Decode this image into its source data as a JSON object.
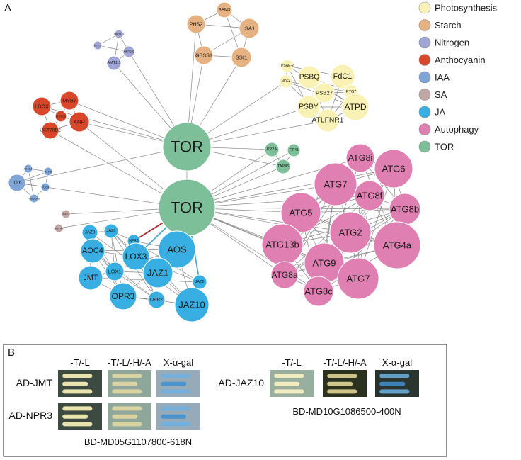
{
  "panel_a": {
    "label": "A",
    "legend": [
      {
        "key": "photosynthesis",
        "label": "Photosynthesis",
        "color": "#f9f2b4"
      },
      {
        "key": "starch",
        "label": "Starch",
        "color": "#e6b282"
      },
      {
        "key": "nitrogen",
        "label": "Nitrogen",
        "color": "#9fa6d6"
      },
      {
        "key": "anthocyanin",
        "label": "Anthocyanin",
        "color": "#d8472a"
      },
      {
        "key": "iaa",
        "label": "IAA",
        "color": "#7fa4d8"
      },
      {
        "key": "sa",
        "label": "SA",
        "color": "#c2a6a6"
      },
      {
        "key": "ja",
        "label": "JA",
        "color": "#38aee2"
      },
      {
        "key": "autophagy",
        "label": "Autophagy",
        "color": "#e07fb2"
      },
      {
        "key": "tor",
        "label": "TOR",
        "color": "#7dbf98"
      }
    ],
    "nodes": [
      {
        "id": "TOR_a",
        "label": "TOR",
        "group": "tor"
      },
      {
        "id": "TOR_b",
        "label": "TOR",
        "group": "tor"
      },
      {
        "id": "BAM3",
        "label": "BAM3",
        "group": "starch"
      },
      {
        "id": "PHS2",
        "label": "PHS2",
        "group": "starch"
      },
      {
        "id": "ISA1",
        "label": "ISA1",
        "group": "starch"
      },
      {
        "id": "GBSS1",
        "label": "GBSS1",
        "group": "starch"
      },
      {
        "id": "SSI1",
        "label": "SSI1",
        "group": "starch"
      },
      {
        "id": "NTP3",
        "label": "NTP3",
        "group": "nitrogen"
      },
      {
        "id": "NRT13",
        "label": "NRT1.3",
        "group": "nitrogen"
      },
      {
        "id": "NRT25",
        "label": "NRT2.5",
        "group": "nitrogen"
      },
      {
        "id": "AMT11",
        "label": "AMT1.1",
        "group": "nitrogen"
      },
      {
        "id": "PSBQ",
        "label": "PSBQ",
        "group": "photosynthesis"
      },
      {
        "id": "FdC1",
        "label": "FdC1",
        "group": "photosynthesis"
      },
      {
        "id": "PSAE2",
        "label": "PSAE-2",
        "group": "photosynthesis"
      },
      {
        "id": "NDF4",
        "label": "NDF4",
        "group": "photosynthesis"
      },
      {
        "id": "PYG7",
        "label": "PYG7",
        "group": "photosynthesis"
      },
      {
        "id": "PSB27",
        "label": "PSB27",
        "group": "photosynthesis"
      },
      {
        "id": "PSBY",
        "label": "PSBY",
        "group": "photosynthesis"
      },
      {
        "id": "ATPD",
        "label": "ATPD",
        "group": "photosynthesis"
      },
      {
        "id": "ATLFNR1",
        "label": "ATLFNR1",
        "group": "photosynthesis"
      },
      {
        "id": "LDOX",
        "label": "LDOX",
        "group": "anthocyanin"
      },
      {
        "id": "MYB7",
        "label": "MYB7",
        "group": "anthocyanin"
      },
      {
        "id": "MYB90",
        "label": "MYB90",
        "group": "anthocyanin"
      },
      {
        "id": "ANR",
        "label": "ANR",
        "group": "anthocyanin"
      },
      {
        "id": "UGT78D2",
        "label": "UGT78D2",
        "group": "anthocyanin"
      },
      {
        "id": "PP2A",
        "label": "PP2A",
        "group": "tor"
      },
      {
        "id": "TIP41",
        "label": "TIP41",
        "group": "tor"
      },
      {
        "id": "TAP46",
        "label": "TAP46",
        "group": "tor"
      },
      {
        "id": "GH31",
        "label": "GH3.1",
        "group": "iaa"
      },
      {
        "id": "TAR2",
        "label": "TAR2",
        "group": "iaa"
      },
      {
        "id": "ILL6",
        "label": "ILL6",
        "group": "iaa"
      },
      {
        "id": "YUC8",
        "label": "YUC8",
        "group": "iaa"
      },
      {
        "id": "YUCCA6",
        "label": "YUCCA6",
        "group": "iaa"
      },
      {
        "id": "GH35",
        "label": "GH3.5",
        "group": "sa"
      },
      {
        "id": "UGT43",
        "label": "UGT43",
        "group": "sa"
      },
      {
        "id": "ATG8i",
        "label": "ATG8i",
        "group": "autophagy"
      },
      {
        "id": "ATG6",
        "label": "ATG6",
        "group": "autophagy"
      },
      {
        "id": "ATG7a",
        "label": "ATG7",
        "group": "autophagy"
      },
      {
        "id": "ATG8f",
        "label": "ATG8f",
        "group": "autophagy"
      },
      {
        "id": "ATG5",
        "label": "ATG5",
        "group": "autophagy"
      },
      {
        "id": "ATG8b",
        "label": "ATG8b",
        "group": "autophagy"
      },
      {
        "id": "ATG2",
        "label": "ATG2",
        "group": "autophagy"
      },
      {
        "id": "ATG13b",
        "label": "ATG13b",
        "group": "autophagy"
      },
      {
        "id": "ATG4a",
        "label": "ATG4a",
        "group": "autophagy"
      },
      {
        "id": "ATG9",
        "label": "ATG9",
        "group": "autophagy"
      },
      {
        "id": "ATG8a",
        "label": "ATG8a",
        "group": "autophagy"
      },
      {
        "id": "ATG7b",
        "label": "ATG7",
        "group": "autophagy"
      },
      {
        "id": "ATG8c",
        "label": "ATG8c",
        "group": "autophagy"
      },
      {
        "id": "JAZ8",
        "label": "JAZ8",
        "group": "ja"
      },
      {
        "id": "JAZ6",
        "label": "JAZ6",
        "group": "ja"
      },
      {
        "id": "NPR3",
        "label": "NPR3",
        "group": "ja"
      },
      {
        "id": "AOS",
        "label": "AOS",
        "group": "ja"
      },
      {
        "id": "AOC4",
        "label": "AOC4",
        "group": "ja"
      },
      {
        "id": "LOX3",
        "label": "LOX3",
        "group": "ja"
      },
      {
        "id": "JAZ2",
        "label": "JAZ2",
        "group": "ja"
      },
      {
        "id": "JMT",
        "label": "JMT",
        "group": "ja"
      },
      {
        "id": "LOX1",
        "label": "LOX1",
        "group": "ja"
      },
      {
        "id": "JAZ1",
        "label": "JAZ1",
        "group": "ja"
      },
      {
        "id": "JAZ10",
        "label": "JAZ10",
        "group": "ja"
      },
      {
        "id": "OPR3",
        "label": "OPR3",
        "group": "ja"
      },
      {
        "id": "OPR2",
        "label": "OPR2",
        "group": "ja"
      }
    ],
    "edge_colors": {
      "default": "#8a8a8a",
      "ja_link": "#4aa9d6",
      "npr3_link": "#b0222a"
    }
  },
  "panel_b": {
    "label": "B",
    "left": {
      "columns": [
        "-T/-L",
        "-T/-L/-H/-A",
        "X-α-gal"
      ],
      "rows": [
        "AD-JMT",
        "AD-NPR3"
      ],
      "bait": "BD-MD05G1107800-618N"
    },
    "right": {
      "columns": [
        "-T/-L",
        "-T/-L/-H/-A",
        "X-α-gal"
      ],
      "rows": [
        "AD-JAZ10"
      ],
      "bait": "BD-MD10G1086500-400N"
    }
  }
}
